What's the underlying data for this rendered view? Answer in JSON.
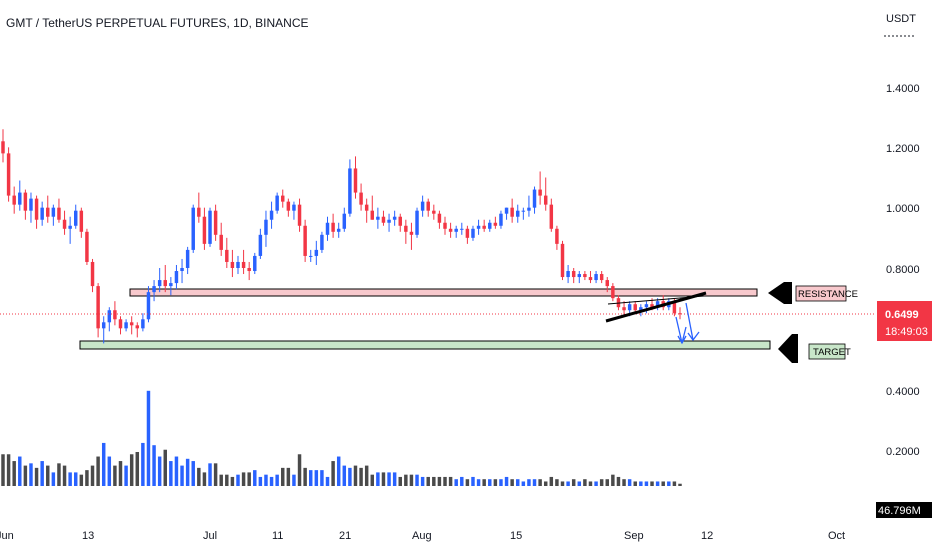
{
  "chart_data": {
    "type": "candlestick",
    "title": "GMT / TetherUS PERPETUAL FUTURES, 1D, BINANCE",
    "currency": "USDT",
    "y_ticks": [
      "1.4000",
      "1.2000",
      "1.0000",
      "0.8000",
      "0.4000",
      "0.2000"
    ],
    "x_ticks": [
      "Jun",
      "13",
      "Jul",
      "11",
      "21",
      "Aug",
      "15",
      "Sep",
      "12",
      "Oct"
    ],
    "price_range": [
      0.55,
      1.45
    ],
    "current_price": "0.6499",
    "countdown": "18:49:03",
    "volume_label": "46.796M",
    "resistance_label": "RESISTANCE",
    "target_label": "TARGET",
    "resistance_zone": [
      0.705,
      0.722
    ],
    "target_zone": [
      0.531,
      0.551
    ],
    "colors": {
      "up": "#2962ff",
      "down": "#f23645",
      "volume_up": "#2962ff",
      "volume_down": "#4a4a4a",
      "resistance_fill": "#f8c9cd",
      "target_fill": "#c8e6c9",
      "price_label": "#f23645"
    },
    "candles": [
      [
        1.22,
        1.26,
        1.15,
        1.18
      ],
      [
        1.18,
        1.2,
        1.02,
        1.04
      ],
      [
        1.04,
        1.07,
        0.98,
        1.01
      ],
      [
        1.01,
        1.09,
        0.99,
        1.05
      ],
      [
        1.05,
        1.06,
        0.96,
        0.99
      ],
      [
        0.99,
        1.05,
        0.95,
        1.03
      ],
      [
        1.03,
        1.04,
        0.93,
        0.96
      ],
      [
        0.96,
        1.02,
        0.94,
        1.0
      ],
      [
        1.0,
        1.04,
        0.95,
        0.97
      ],
      [
        0.97,
        1.01,
        0.94,
        1.0
      ],
      [
        1.0,
        1.03,
        0.95,
        0.96
      ],
      [
        0.96,
        0.99,
        0.91,
        0.93
      ],
      [
        0.93,
        0.97,
        0.88,
        0.94
      ],
      [
        0.94,
        1.01,
        0.93,
        0.99
      ],
      [
        0.99,
        1.0,
        0.9,
        0.92
      ],
      [
        0.92,
        0.93,
        0.81,
        0.82
      ],
      [
        0.82,
        0.83,
        0.72,
        0.74
      ],
      [
        0.74,
        0.75,
        0.57,
        0.6
      ],
      [
        0.6,
        0.64,
        0.55,
        0.62
      ],
      [
        0.62,
        0.67,
        0.59,
        0.66
      ],
      [
        0.66,
        0.69,
        0.61,
        0.63
      ],
      [
        0.63,
        0.64,
        0.58,
        0.6
      ],
      [
        0.6,
        0.63,
        0.59,
        0.62
      ],
      [
        0.62,
        0.64,
        0.58,
        0.61
      ],
      [
        0.61,
        0.62,
        0.57,
        0.6
      ],
      [
        0.6,
        0.65,
        0.59,
        0.63
      ],
      [
        0.63,
        0.74,
        0.62,
        0.72
      ],
      [
        0.72,
        0.76,
        0.69,
        0.74
      ],
      [
        0.74,
        0.8,
        0.72,
        0.76
      ],
      [
        0.76,
        0.81,
        0.72,
        0.74
      ],
      [
        0.74,
        0.77,
        0.71,
        0.75
      ],
      [
        0.75,
        0.81,
        0.73,
        0.79
      ],
      [
        0.79,
        0.83,
        0.75,
        0.8
      ],
      [
        0.8,
        0.87,
        0.78,
        0.86
      ],
      [
        0.86,
        1.01,
        0.85,
        1.0
      ],
      [
        1.0,
        1.05,
        0.95,
        0.97
      ],
      [
        0.97,
        1.0,
        0.86,
        0.88
      ],
      [
        0.88,
        1.0,
        0.87,
        0.99
      ],
      [
        0.99,
        1.01,
        0.89,
        0.91
      ],
      [
        0.91,
        0.95,
        0.84,
        0.86
      ],
      [
        0.86,
        0.9,
        0.8,
        0.82
      ],
      [
        0.82,
        0.86,
        0.77,
        0.8
      ],
      [
        0.8,
        0.84,
        0.78,
        0.82
      ],
      [
        0.82,
        0.86,
        0.78,
        0.8
      ],
      [
        0.8,
        0.82,
        0.76,
        0.79
      ],
      [
        0.79,
        0.85,
        0.78,
        0.84
      ],
      [
        0.84,
        0.93,
        0.83,
        0.91
      ],
      [
        0.91,
        0.99,
        0.87,
        0.96
      ],
      [
        0.96,
        1.02,
        0.93,
        0.99
      ],
      [
        0.99,
        1.05,
        0.98,
        1.04
      ],
      [
        1.04,
        1.06,
        1.0,
        1.02
      ],
      [
        1.02,
        1.03,
        0.97,
        0.99
      ],
      [
        0.99,
        1.02,
        0.96,
        1.01
      ],
      [
        1.01,
        1.03,
        0.92,
        0.94
      ],
      [
        0.94,
        0.96,
        0.82,
        0.84
      ],
      [
        0.84,
        0.86,
        0.82,
        0.84
      ],
      [
        0.84,
        0.89,
        0.81,
        0.86
      ],
      [
        0.86,
        0.92,
        0.85,
        0.91
      ],
      [
        0.91,
        0.97,
        0.89,
        0.95
      ],
      [
        0.95,
        0.98,
        0.9,
        0.92
      ],
      [
        0.92,
        0.95,
        0.9,
        0.93
      ],
      [
        0.93,
        1.0,
        0.92,
        0.98
      ],
      [
        0.98,
        1.16,
        0.97,
        1.13
      ],
      [
        1.13,
        1.17,
        1.03,
        1.05
      ],
      [
        1.05,
        1.08,
        0.99,
        1.01
      ],
      [
        1.01,
        1.03,
        0.95,
        0.99
      ],
      [
        0.99,
        1.04,
        0.96,
        0.96
      ],
      [
        0.96,
        1.0,
        0.93,
        0.97
      ],
      [
        0.97,
        0.99,
        0.94,
        0.95
      ],
      [
        0.95,
        0.98,
        0.92,
        0.96
      ],
      [
        0.96,
        0.99,
        0.94,
        0.97
      ],
      [
        0.97,
        0.98,
        0.92,
        0.94
      ],
      [
        0.94,
        0.96,
        0.88,
        0.92
      ],
      [
        0.92,
        0.95,
        0.86,
        0.91
      ],
      [
        0.91,
        1.0,
        0.9,
        0.99
      ],
      [
        0.99,
        1.04,
        0.97,
        1.02
      ],
      [
        1.02,
        1.03,
        0.97,
        0.99
      ],
      [
        0.99,
        1.01,
        0.96,
        0.98
      ],
      [
        0.98,
        0.99,
        0.93,
        0.95
      ],
      [
        0.95,
        0.97,
        0.91,
        0.93
      ],
      [
        0.93,
        0.95,
        0.9,
        0.92
      ],
      [
        0.92,
        0.94,
        0.9,
        0.93
      ],
      [
        0.93,
        0.95,
        0.91,
        0.93
      ],
      [
        0.93,
        0.94,
        0.88,
        0.9
      ],
      [
        0.9,
        0.94,
        0.89,
        0.93
      ],
      [
        0.93,
        0.96,
        0.91,
        0.94
      ],
      [
        0.94,
        0.96,
        0.92,
        0.93
      ],
      [
        0.93,
        0.96,
        0.92,
        0.95
      ],
      [
        0.95,
        0.97,
        0.93,
        0.94
      ],
      [
        0.94,
        0.99,
        0.93,
        0.98
      ],
      [
        0.98,
        1.0,
        0.96,
        1.0
      ],
      [
        1.0,
        1.03,
        0.95,
        0.97
      ],
      [
        0.97,
        1.01,
        0.95,
        0.99
      ],
      [
        0.99,
        1.0,
        0.96,
        0.99
      ],
      [
        0.99,
        1.04,
        0.97,
        1.0
      ],
      [
        1.0,
        1.07,
        0.98,
        1.06
      ],
      [
        1.06,
        1.12,
        1.01,
        1.04
      ],
      [
        1.04,
        1.1,
        0.99,
        1.01
      ],
      [
        1.01,
        1.03,
        0.92,
        0.93
      ],
      [
        0.93,
        0.94,
        0.86,
        0.88
      ],
      [
        0.88,
        0.89,
        0.76,
        0.77
      ],
      [
        0.77,
        0.81,
        0.75,
        0.79
      ],
      [
        0.79,
        0.8,
        0.75,
        0.77
      ],
      [
        0.77,
        0.79,
        0.75,
        0.78
      ],
      [
        0.78,
        0.79,
        0.76,
        0.77
      ],
      [
        0.77,
        0.79,
        0.75,
        0.76
      ],
      [
        0.76,
        0.79,
        0.75,
        0.78
      ],
      [
        0.78,
        0.79,
        0.75,
        0.76
      ],
      [
        0.76,
        0.77,
        0.72,
        0.74
      ],
      [
        0.74,
        0.75,
        0.69,
        0.7
      ],
      [
        0.7,
        0.71,
        0.66,
        0.67
      ],
      [
        0.67,
        0.69,
        0.64,
        0.66
      ],
      [
        0.66,
        0.69,
        0.64,
        0.68
      ],
      [
        0.68,
        0.69,
        0.65,
        0.66
      ],
      [
        0.66,
        0.68,
        0.64,
        0.67
      ],
      [
        0.67,
        0.69,
        0.65,
        0.68
      ],
      [
        0.68,
        0.7,
        0.66,
        0.67
      ],
      [
        0.67,
        0.7,
        0.66,
        0.69
      ],
      [
        0.69,
        0.71,
        0.66,
        0.67
      ],
      [
        0.67,
        0.7,
        0.66,
        0.69
      ],
      [
        0.69,
        0.7,
        0.64,
        0.65
      ],
      [
        0.65,
        0.67,
        0.63,
        0.6499
      ]
    ],
    "volume_scale": [
      0,
      0.45
    ],
    "volumes": [
      0.14,
      0.14,
      0.11,
      0.13,
      0.09,
      0.1,
      0.08,
      0.11,
      0.09,
      0.06,
      0.1,
      0.09,
      0.06,
      0.06,
      0.05,
      0.07,
      0.09,
      0.13,
      0.19,
      0.13,
      0.09,
      0.11,
      0.09,
      0.14,
      0.15,
      0.19,
      0.42,
      0.18,
      0.13,
      0.16,
      0.11,
      0.13,
      0.09,
      0.12,
      0.11,
      0.08,
      0.06,
      0.1,
      0.1,
      0.05,
      0.05,
      0.04,
      0.05,
      0.06,
      0.06,
      0.07,
      0.04,
      0.05,
      0.04,
      0.05,
      0.08,
      0.08,
      0.05,
      0.14,
      0.08,
      0.07,
      0.07,
      0.07,
      0.04,
      0.11,
      0.13,
      0.09,
      0.08,
      0.09,
      0.08,
      0.09,
      0.05,
      0.06,
      0.06,
      0.06,
      0.06,
      0.04,
      0.05,
      0.05,
      0.05,
      0.04,
      0.04,
      0.04,
      0.04,
      0.04,
      0.04,
      0.03,
      0.04,
      0.03,
      0.04,
      0.03,
      0.03,
      0.03,
      0.03,
      0.03,
      0.04,
      0.03,
      0.03,
      0.02,
      0.03,
      0.03,
      0.03,
      0.02,
      0.04,
      0.03,
      0.02,
      0.02,
      0.03,
      0.02,
      0.03,
      0.02,
      0.02,
      0.03,
      0.03,
      0.05,
      0.04,
      0.03,
      0.03,
      0.02,
      0.02,
      0.02,
      0.02,
      0.02,
      0.02,
      0.02,
      0.02,
      0.01
    ]
  }
}
